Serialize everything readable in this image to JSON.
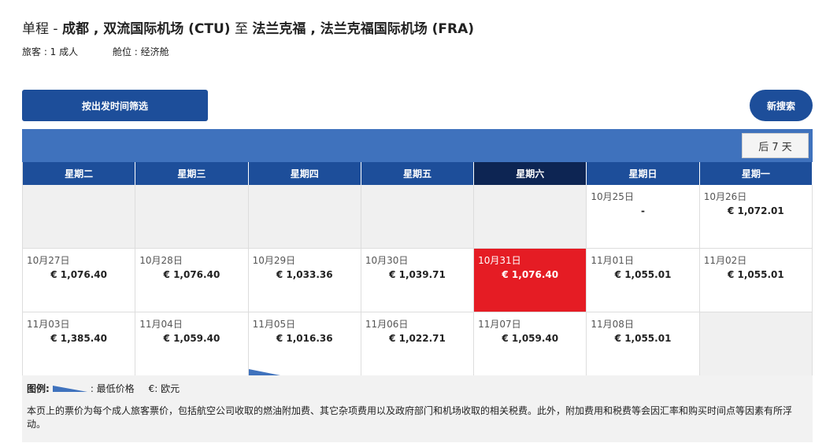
{
  "header": {
    "trip_type": "单程",
    "separator": " - ",
    "origin": "成都 , 双流国际机场 (CTU)",
    "to": " 至 ",
    "destination": "法兰克福 , 法兰克福国际机场 (FRA)",
    "passengers": "旅客 : 1 成人",
    "cabin": "舱位 : 经济舱"
  },
  "buttons": {
    "filter_by_time": "按出发时间筛选",
    "new_search": "新搜索",
    "next_7_days": "后 7 天"
  },
  "weekdays": [
    "星期二",
    "星期三",
    "星期四",
    "星期五",
    "星期六",
    "星期日",
    "星期一"
  ],
  "active_weekday_index": 4,
  "weeks": [
    [
      {
        "date": "",
        "price": ""
      },
      {
        "date": "",
        "price": ""
      },
      {
        "date": "",
        "price": ""
      },
      {
        "date": "",
        "price": ""
      },
      {
        "date": "",
        "price": ""
      },
      {
        "date": "10月25日",
        "price": "-"
      },
      {
        "date": "10月26日",
        "price": "€ 1,072.01"
      }
    ],
    [
      {
        "date": "10月27日",
        "price": "€ 1,076.40"
      },
      {
        "date": "10月28日",
        "price": "€ 1,076.40"
      },
      {
        "date": "10月29日",
        "price": "€ 1,033.36"
      },
      {
        "date": "10月30日",
        "price": "€ 1,039.71"
      },
      {
        "date": "10月31日",
        "price": "€ 1,076.40"
      },
      {
        "date": "11月01日",
        "price": "€ 1,055.01"
      },
      {
        "date": "11月02日",
        "price": "€ 1,055.01"
      }
    ],
    [
      {
        "date": "11月03日",
        "price": "€ 1,385.40"
      },
      {
        "date": "11月04日",
        "price": "€ 1,059.40"
      },
      {
        "date": "11月05日",
        "price": "€ 1,016.36"
      },
      {
        "date": "11月06日",
        "price": "€ 1,022.71"
      },
      {
        "date": "11月07日",
        "price": "€ 1,059.40"
      },
      {
        "date": "11月08日",
        "price": "€ 1,055.01"
      },
      {
        "date": "",
        "price": ""
      }
    ]
  ],
  "selected_date": "10月31日",
  "lowest_price_date": "11月05日",
  "legend": {
    "label": "图例:",
    "lowest_price": ": 最低价格",
    "currency": "€: 欧元",
    "note": "本页上的票价为每个成人旅客票价，包括航空公司收取的燃油附加费、其它杂项费用以及政府部门和机场收取的相关税费。此外，附加费用和税费等会因汇率和购买时间点等因素有所浮动。"
  },
  "colors": {
    "primary": "#1d4e9a",
    "bar": "#3f72bd",
    "active_day": "#0d2553",
    "selected": "#e51c24",
    "empty": "#f0f0f0"
  }
}
